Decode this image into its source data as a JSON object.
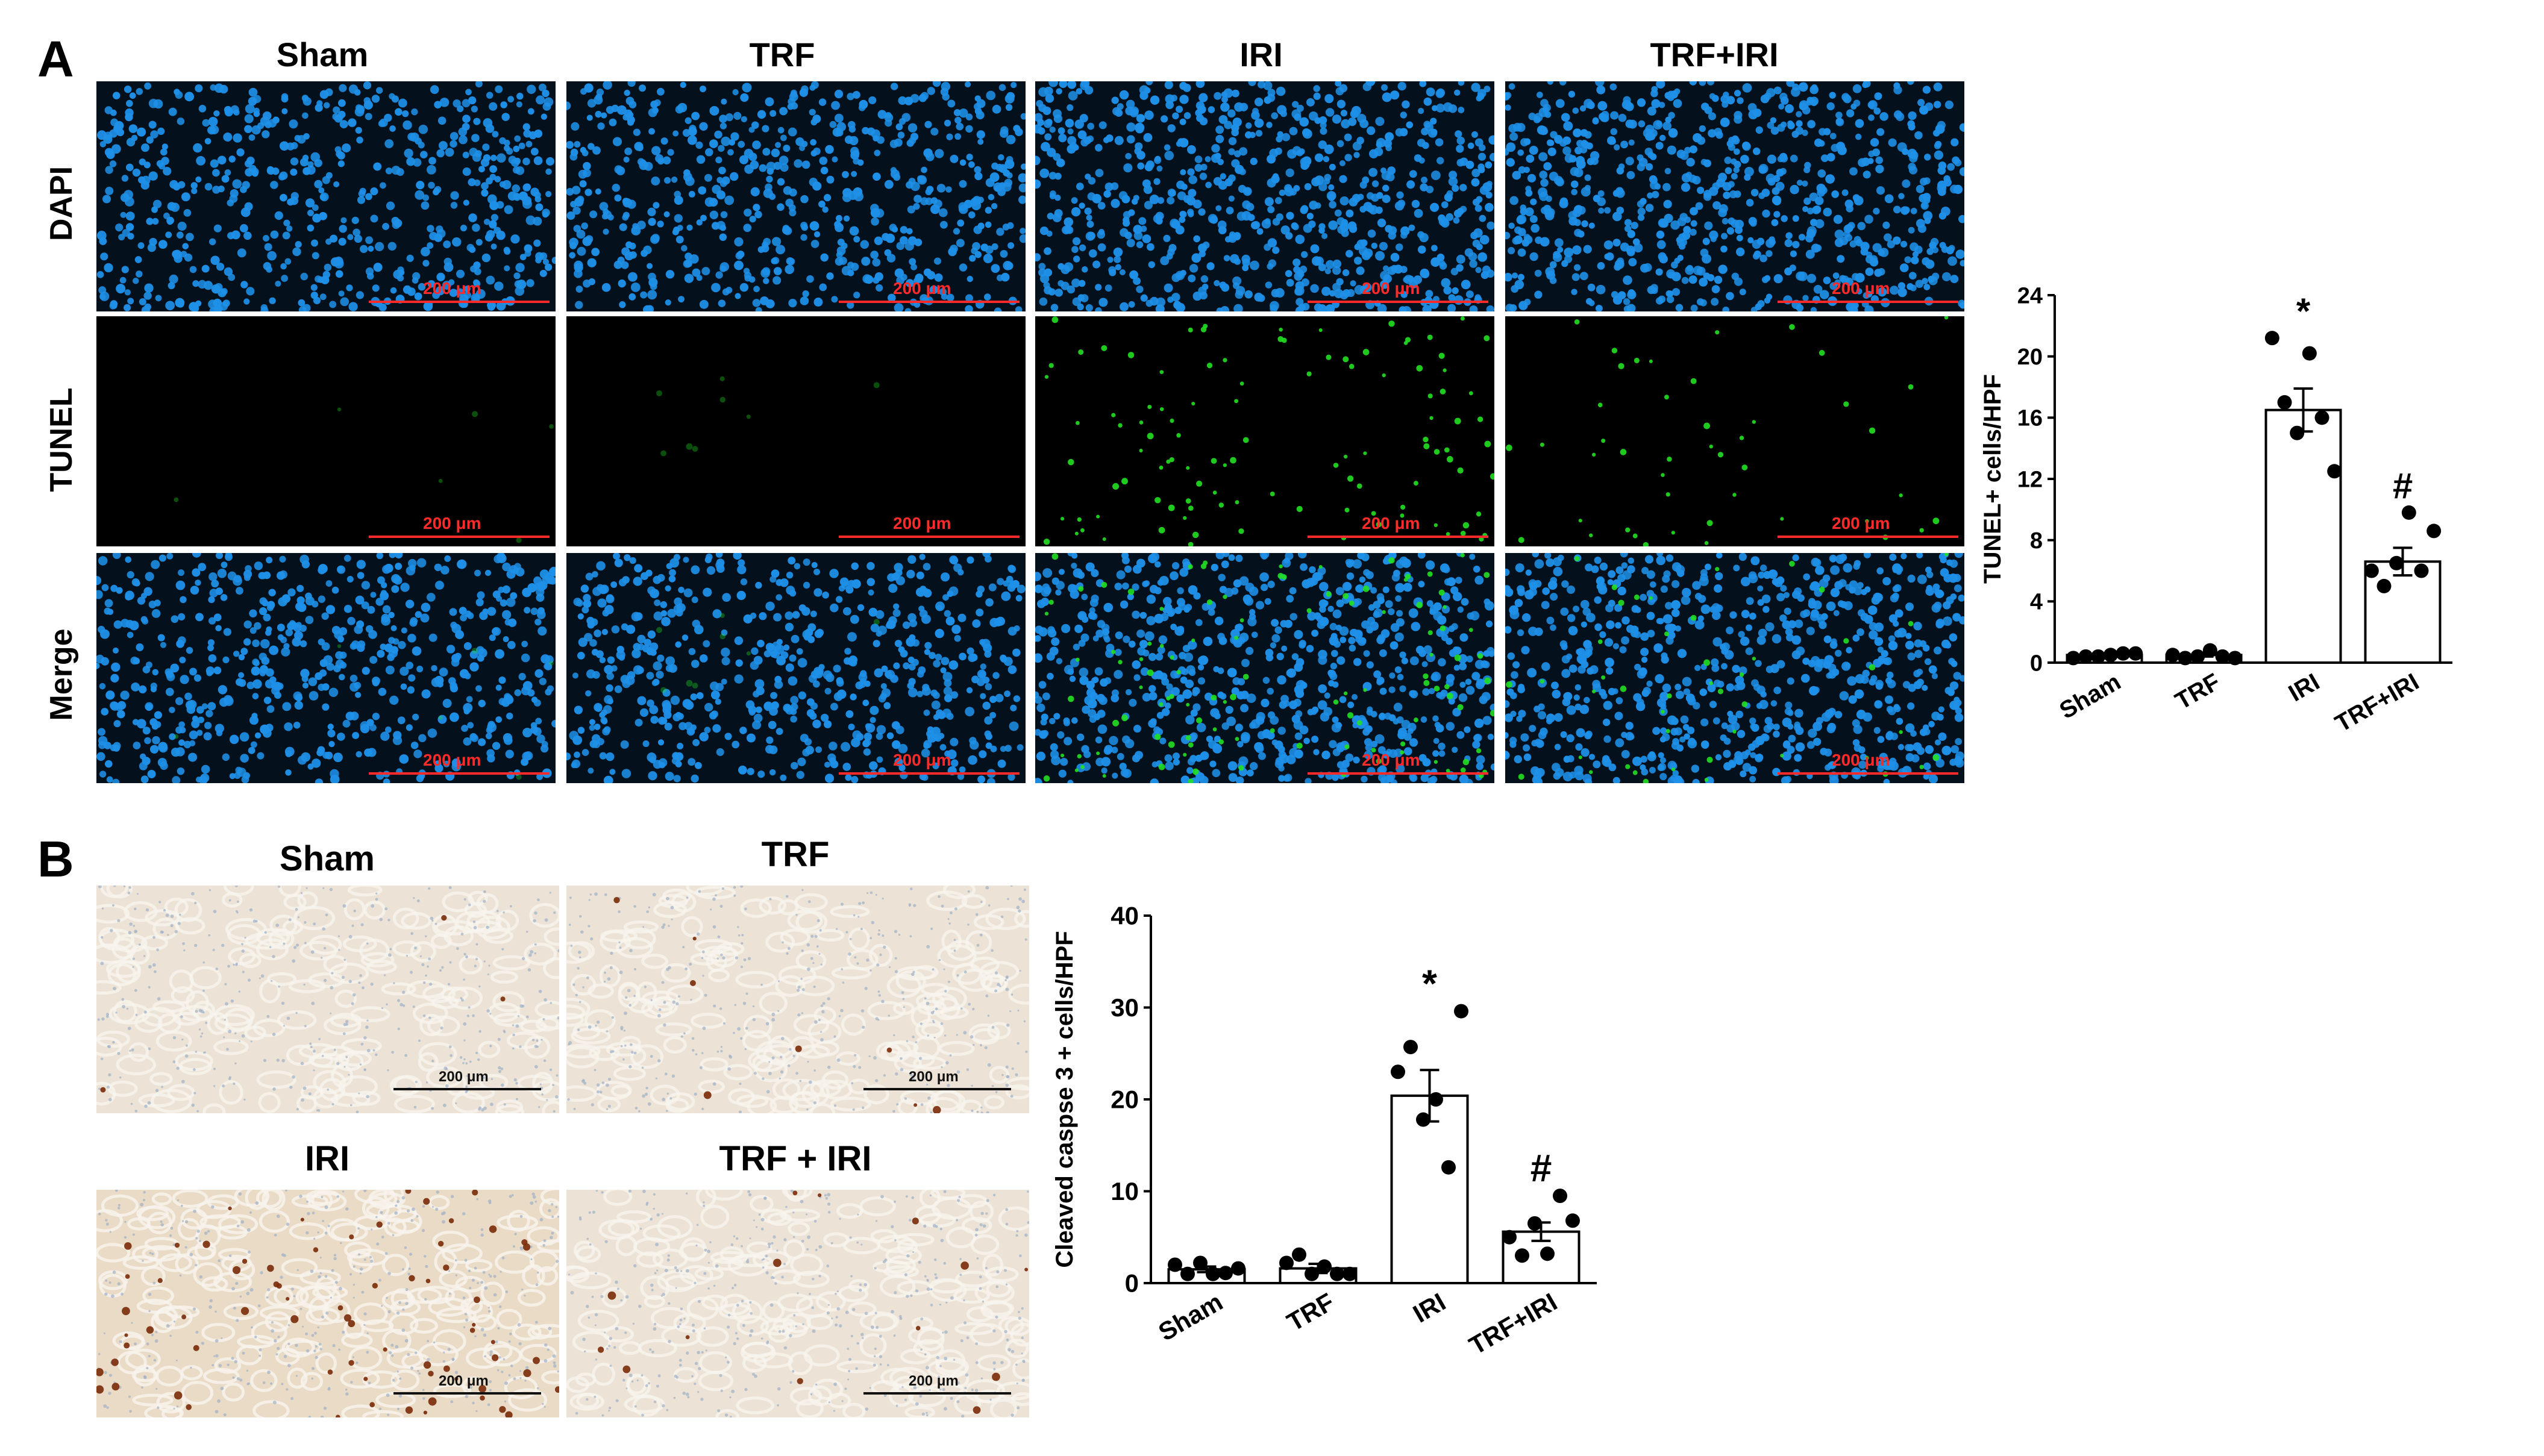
{
  "panel_a": {
    "letter": "A",
    "columns": [
      "Sham",
      "TRF",
      "IRI",
      "TRF+IRI"
    ],
    "rows": [
      "DAPI",
      "TUNEL",
      "Merge"
    ],
    "scale_bar": "200 μm"
  },
  "panel_b": {
    "letter": "B",
    "titles": [
      "Sham",
      "TRF",
      "IRI",
      "TRF + IRI"
    ],
    "scale_bar": "200 μm"
  },
  "colors": {
    "dapi": "#1e90e8",
    "tunel": "#22e022",
    "scale_bar_fluor": "#ff2a2a",
    "ihc_background": "#ece3d6",
    "ihc_brown": "#7a2a08"
  },
  "chart_data": [
    {
      "type": "bar",
      "categories": [
        "Sham",
        "TRF",
        "IRI",
        "TRF+IRI"
      ],
      "values": [
        0.5,
        0.5,
        16.5,
        6.6
      ],
      "errors": [
        0.1,
        0.1,
        1.4,
        0.9
      ],
      "points": [
        [
          0.3,
          0.4,
          0.4,
          0.5,
          0.6,
          0.6
        ],
        [
          0.5,
          0.3,
          0.4,
          0.8,
          0.4,
          0.3
        ],
        [
          21.2,
          17.0,
          15.0,
          20.2,
          16.0,
          12.5
        ],
        [
          6.0,
          5.0,
          6.5,
          9.8,
          6.0,
          8.6
        ]
      ],
      "annotations": [
        "",
        "",
        "*",
        "#"
      ],
      "ylabel": "TUNEL+ cells/HPF",
      "ylim": [
        0,
        24
      ],
      "yticks": [
        0,
        4,
        8,
        12,
        16,
        20,
        24
      ]
    },
    {
      "type": "bar",
      "categories": [
        "Sham",
        "TRF",
        "IRI",
        "TRF+IRI"
      ],
      "values": [
        1.5,
        1.6,
        20.4,
        5.6
      ],
      "errors": [
        0.3,
        0.5,
        2.8,
        1.0
      ],
      "points": [
        [
          2.0,
          1.0,
          2.2,
          1.0,
          1.1,
          1.6
        ],
        [
          2.2,
          3.1,
          1.0,
          1.8,
          1.0,
          1.0
        ],
        [
          23.0,
          25.7,
          17.8,
          20.0,
          12.6,
          29.6
        ],
        [
          5.0,
          3.0,
          6.5,
          3.2,
          9.5,
          6.8
        ]
      ],
      "annotations": [
        "",
        "",
        "*",
        "#"
      ],
      "ylabel": "Cleaved caspse 3 + cells/HPF",
      "ylim": [
        0,
        40
      ],
      "yticks": [
        0,
        10,
        20,
        30,
        40
      ]
    }
  ]
}
